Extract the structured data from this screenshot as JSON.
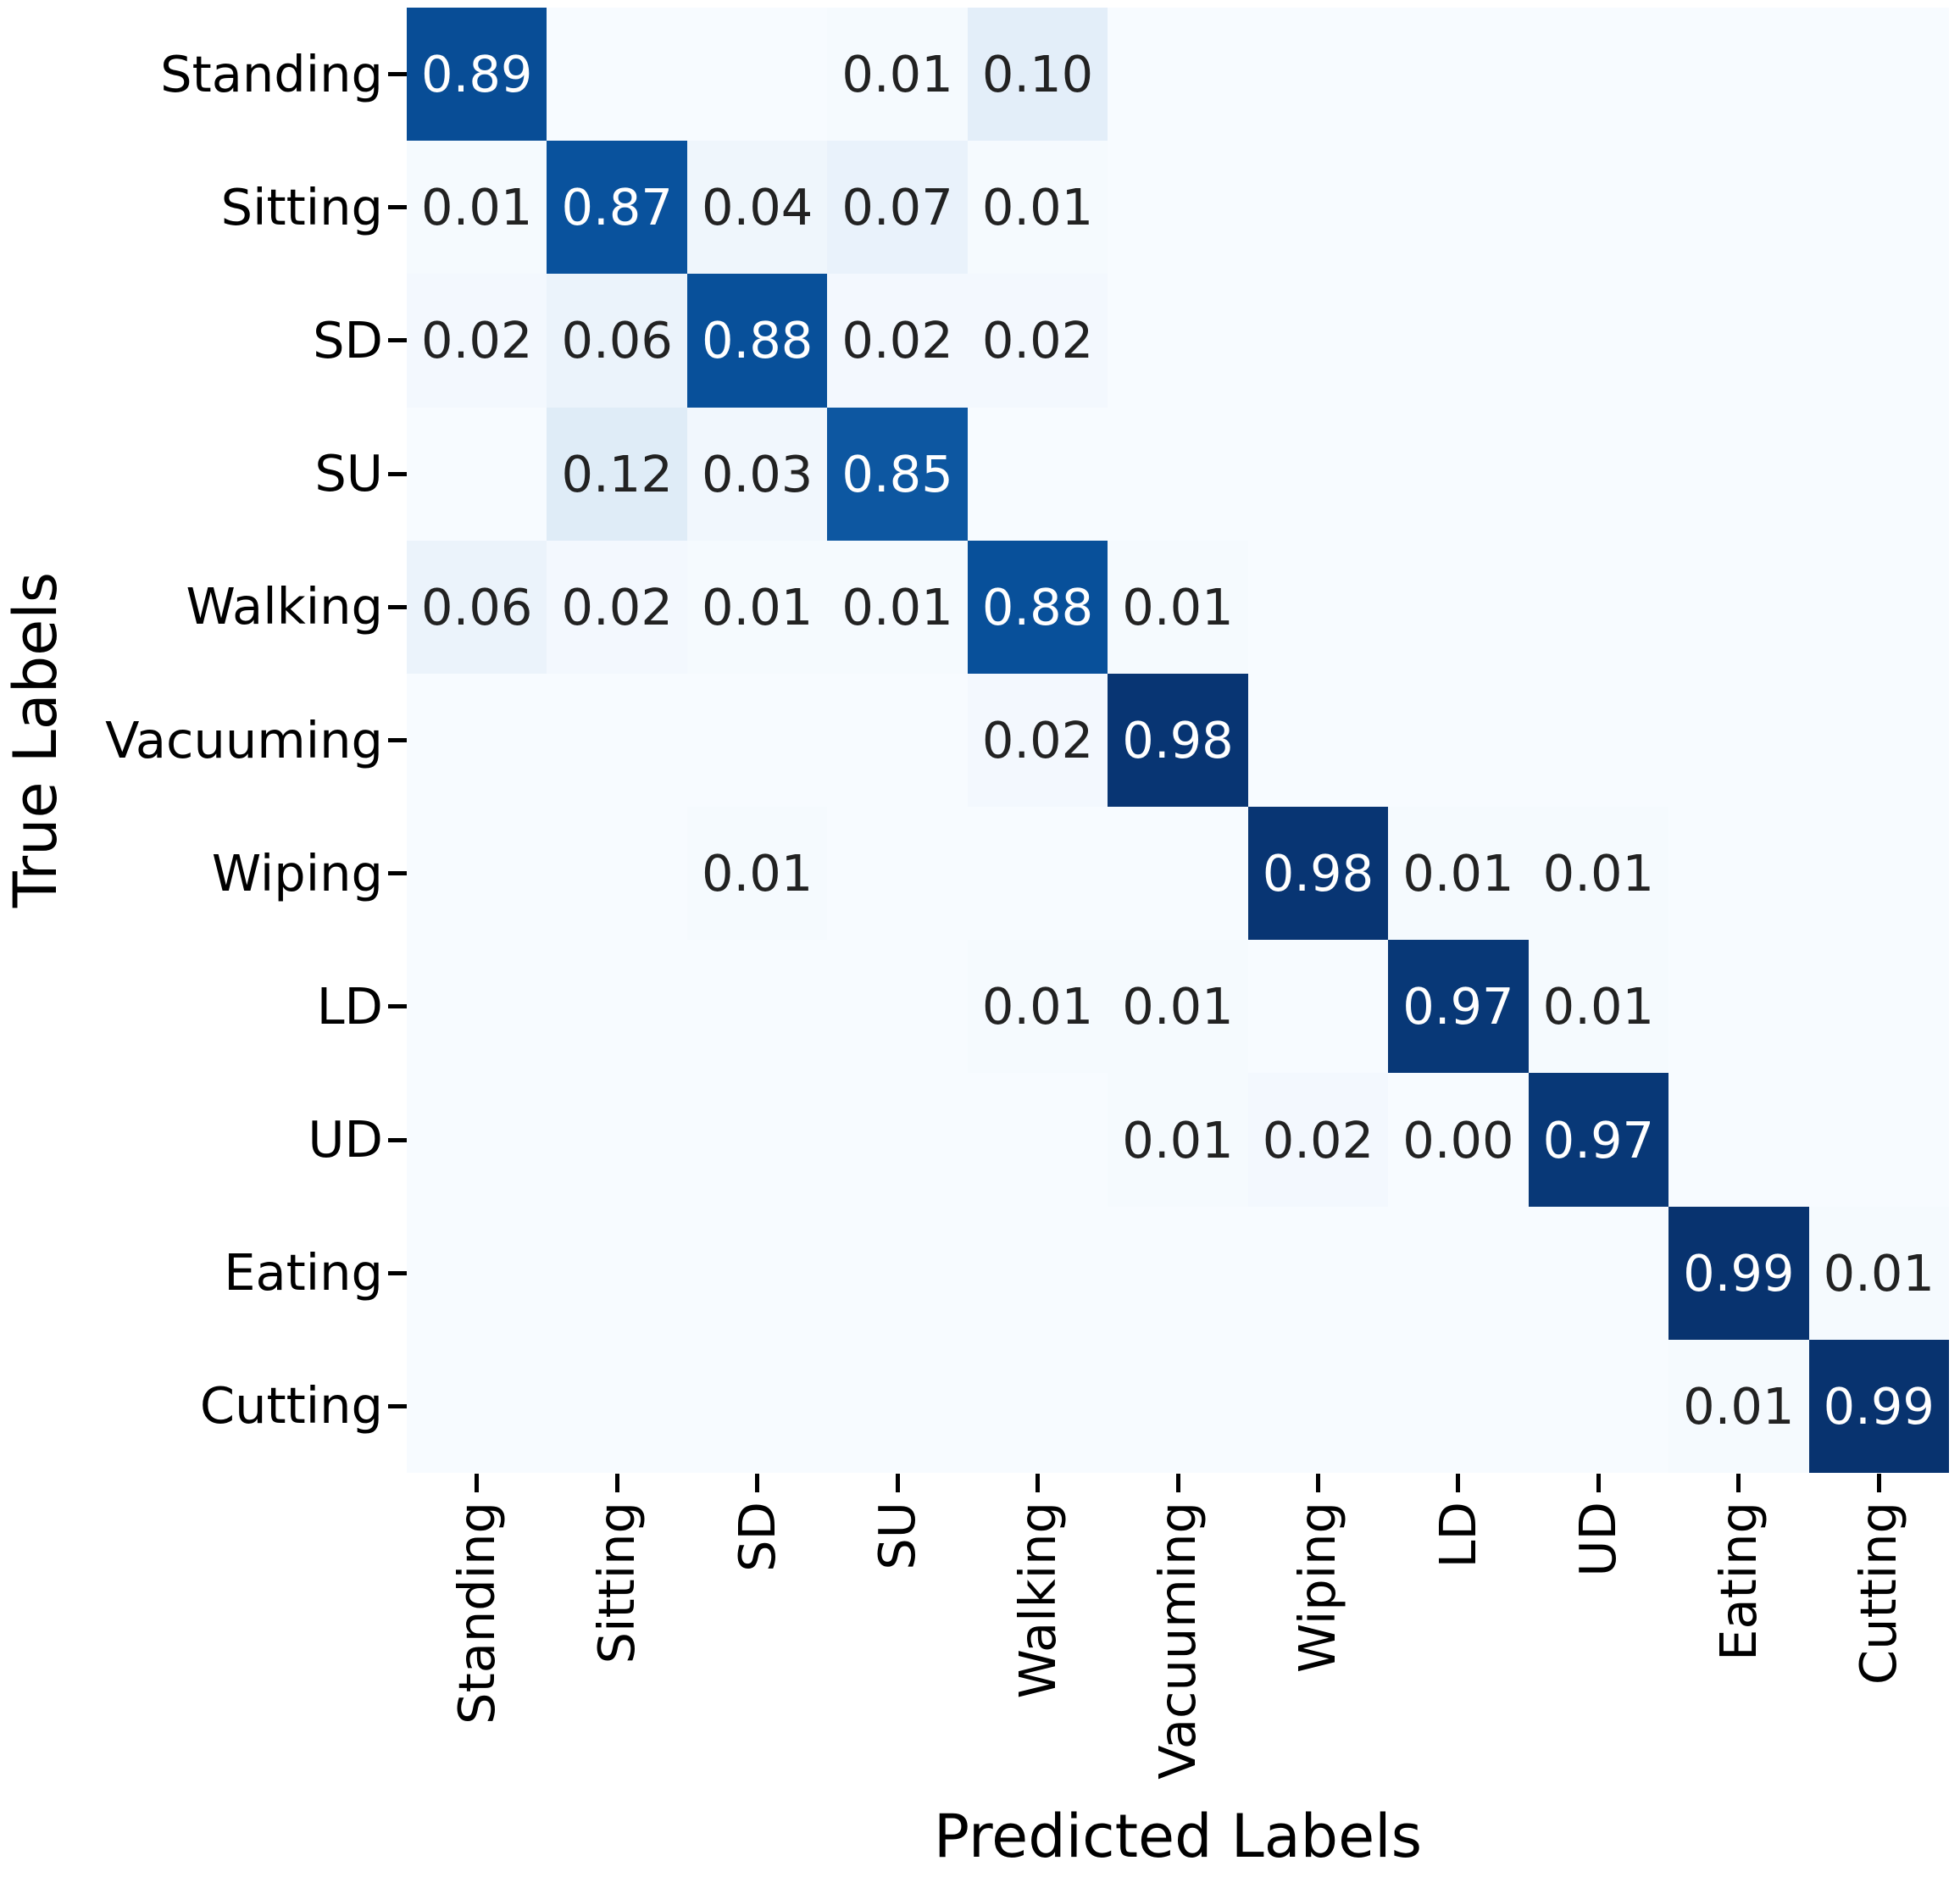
{
  "chart_data": {
    "type": "heatmap",
    "title": "",
    "xlabel": "Predicted Labels",
    "ylabel": "True Labels",
    "x_tick_labels": [
      "Standing",
      "Sitting",
      "SD",
      "SU",
      "Walking",
      "Vacuuming",
      "Wiping",
      "LD",
      "UD",
      "Eating",
      "Cutting"
    ],
    "y_tick_labels": [
      "Standing",
      "Sitting",
      "SD",
      "SU",
      "Walking",
      "Vacuuming",
      "Wiping",
      "LD",
      "UD",
      "Eating",
      "Cutting"
    ],
    "vmin": 0,
    "vmax": 1,
    "grid": false,
    "legend": "none",
    "colormap": "Blues",
    "colormap_anchors": [
      [
        0.0,
        "#f7fbff"
      ],
      [
        0.125,
        "#deebf7"
      ],
      [
        0.25,
        "#c6dbef"
      ],
      [
        0.375,
        "#9ecae1"
      ],
      [
        0.5,
        "#6baed6"
      ],
      [
        0.625,
        "#4292c6"
      ],
      [
        0.75,
        "#2171b5"
      ],
      [
        0.875,
        "#08519c"
      ],
      [
        1.0,
        "#08306b"
      ]
    ],
    "matrix": [
      [
        0.89,
        0,
        0,
        0.01,
        0.1,
        0,
        0,
        0,
        0,
        0,
        0
      ],
      [
        0.01,
        0.87,
        0.04,
        0.07,
        0.01,
        0,
        0,
        0,
        0,
        0,
        0
      ],
      [
        0.02,
        0.06,
        0.88,
        0.02,
        0.02,
        0,
        0,
        0,
        0,
        0,
        0
      ],
      [
        0,
        0.12,
        0.03,
        0.85,
        0,
        0,
        0,
        0,
        0,
        0,
        0
      ],
      [
        0.06,
        0.02,
        0.01,
        0.01,
        0.88,
        0.01,
        0,
        0,
        0,
        0,
        0
      ],
      [
        0,
        0,
        0,
        0,
        0.02,
        0.98,
        0,
        0,
        0,
        0,
        0
      ],
      [
        0,
        0,
        0.01,
        0,
        0,
        0,
        0.98,
        0.01,
        0.01,
        0,
        0
      ],
      [
        0,
        0,
        0,
        0,
        0.01,
        0.01,
        0,
        0.97,
        0.01,
        0,
        0
      ],
      [
        0,
        0,
        0,
        0,
        0,
        0.01,
        0.02,
        0.0,
        0.97,
        0,
        0
      ],
      [
        0,
        0,
        0,
        0,
        0,
        0,
        0,
        0,
        0,
        0.99,
        0.01
      ],
      [
        0,
        0,
        0,
        0,
        0,
        0,
        0,
        0,
        0,
        0.01,
        0.99
      ]
    ],
    "annotations": [
      [
        "0.89",
        "",
        "",
        "0.01",
        "0.10",
        "",
        "",
        "",
        "",
        "",
        ""
      ],
      [
        "0.01",
        "0.87",
        "0.04",
        "0.07",
        "0.01",
        "",
        "",
        "",
        "",
        "",
        ""
      ],
      [
        "0.02",
        "0.06",
        "0.88",
        "0.02",
        "0.02",
        "",
        "",
        "",
        "",
        "",
        ""
      ],
      [
        "",
        "0.12",
        "0.03",
        "0.85",
        "",
        "",
        "",
        "",
        "",
        "",
        ""
      ],
      [
        "0.06",
        "0.02",
        "0.01",
        "0.01",
        "0.88",
        "0.01",
        "",
        "",
        "",
        "",
        ""
      ],
      [
        "",
        "",
        "",
        "",
        "0.02",
        "0.98",
        "",
        "",
        "",
        "",
        ""
      ],
      [
        "",
        "",
        "0.01",
        "",
        "",
        "",
        "0.98",
        "0.01",
        "0.01",
        "",
        ""
      ],
      [
        "",
        "",
        "",
        "",
        "0.01",
        "0.01",
        "",
        "0.97",
        "0.01",
        "",
        ""
      ],
      [
        "",
        "",
        "",
        "",
        "",
        "0.01",
        "0.02",
        "0.00",
        "0.97",
        "",
        ""
      ],
      [
        "",
        "",
        "",
        "",
        "",
        "",
        "",
        "",
        "",
        "0.99",
        "0.01"
      ],
      [
        "",
        "",
        "",
        "",
        "",
        "",
        "",
        "",
        "",
        "0.01",
        "0.99"
      ]
    ],
    "annotation_color_light_cells": "#222222",
    "annotation_color_dark_cells": "#ffffff",
    "tick_color": "#000000",
    "background_color": "#ffffff"
  }
}
